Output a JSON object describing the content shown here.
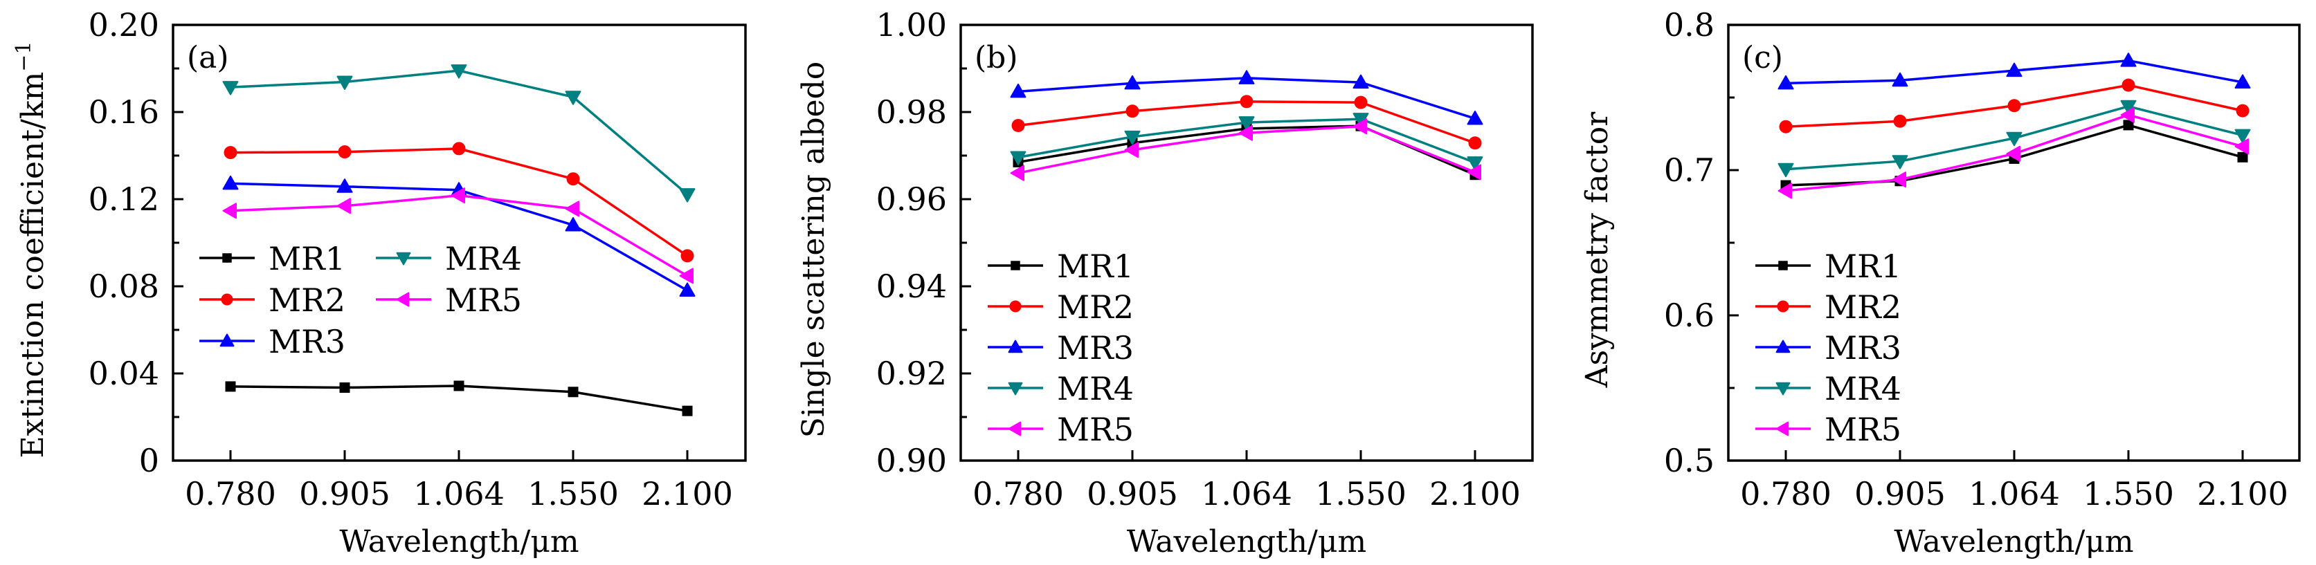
{
  "chart_data": [
    {
      "type": "line",
      "panel_label": "(a)",
      "title": "",
      "xlabel": "Wavelength/μm",
      "ylabel": "Extinction coefficient/km",
      "ylabel_superscript": "−1",
      "categories": [
        "0.780",
        "0.905",
        "1.064",
        "1.550",
        "2.100"
      ],
      "ylim": [
        0,
        0.2
      ],
      "yticks": [
        0,
        0.04,
        0.08,
        0.12,
        0.16,
        0.2
      ],
      "ytick_labels": [
        "0",
        "0.04",
        "0.08",
        "0.12",
        "0.16",
        "0.20"
      ],
      "grid": false,
      "legend_placement": "center-left",
      "legend_columns": 2,
      "series": [
        {
          "name": "MR1",
          "color": "#000000",
          "marker": "square",
          "values": [
            0.034,
            0.0335,
            0.0343,
            0.0315,
            0.0228
          ]
        },
        {
          "name": "MR2",
          "color": "#ff0000",
          "marker": "circle",
          "values": [
            0.1414,
            0.1417,
            0.1432,
            0.1293,
            0.094
          ]
        },
        {
          "name": "MR3",
          "color": "#0000ff",
          "marker": "triangle-up",
          "values": [
            0.1272,
            0.1258,
            0.1242,
            0.1081,
            0.0781
          ]
        },
        {
          "name": "MR4",
          "color": "#008080",
          "marker": "triangle-down",
          "values": [
            0.1714,
            0.1738,
            0.179,
            0.1669,
            0.1222
          ]
        },
        {
          "name": "MR5",
          "color": "#ff00ff",
          "marker": "triangle-left",
          "values": [
            0.1147,
            0.1169,
            0.1217,
            0.1156,
            0.0848
          ]
        }
      ]
    },
    {
      "type": "line",
      "panel_label": "(b)",
      "title": "",
      "xlabel": "Wavelength/μm",
      "ylabel": "Single scattering albedo",
      "ylabel_superscript": "",
      "categories": [
        "0.780",
        "0.905",
        "1.064",
        "1.550",
        "2.100"
      ],
      "ylim": [
        0.9,
        1.0
      ],
      "yticks": [
        0.9,
        0.92,
        0.94,
        0.96,
        0.98,
        1.0
      ],
      "ytick_labels": [
        "0.90",
        "0.92",
        "0.94",
        "0.96",
        "0.98",
        "1.00"
      ],
      "grid": false,
      "legend_placement": "lower-left",
      "legend_columns": 1,
      "series": [
        {
          "name": "MR1",
          "color": "#000000",
          "marker": "square",
          "values": [
            0.9685,
            0.9729,
            0.9762,
            0.9768,
            0.9656
          ]
        },
        {
          "name": "MR2",
          "color": "#ff0000",
          "marker": "circle",
          "values": [
            0.9769,
            0.9802,
            0.9824,
            0.9822,
            0.9729
          ]
        },
        {
          "name": "MR3",
          "color": "#0000ff",
          "marker": "triangle-up",
          "values": [
            0.9847,
            0.9866,
            0.9878,
            0.9868,
            0.9785
          ]
        },
        {
          "name": "MR4",
          "color": "#008080",
          "marker": "triangle-down",
          "values": [
            0.9696,
            0.9743,
            0.9776,
            0.9784,
            0.9684
          ]
        },
        {
          "name": "MR5",
          "color": "#ff00ff",
          "marker": "triangle-left",
          "values": [
            0.966,
            0.9713,
            0.9752,
            0.9767,
            0.9662
          ]
        }
      ]
    },
    {
      "type": "line",
      "panel_label": "(c)",
      "title": "",
      "xlabel": "Wavelength/μm",
      "ylabel": "Asymmetry factor",
      "ylabel_superscript": "",
      "categories": [
        "0.780",
        "0.905",
        "1.064",
        "1.550",
        "2.100"
      ],
      "ylim": [
        0.5,
        0.8
      ],
      "yticks": [
        0.5,
        0.6,
        0.7,
        0.8
      ],
      "ytick_labels": [
        "0.5",
        "0.6",
        "0.7",
        "0.8"
      ],
      "grid": false,
      "legend_placement": "lower-left",
      "legend_columns": 1,
      "series": [
        {
          "name": "MR1",
          "color": "#000000",
          "marker": "square",
          "values": [
            0.6895,
            0.6925,
            0.7079,
            0.731,
            0.7089
          ]
        },
        {
          "name": "MR2",
          "color": "#ff0000",
          "marker": "circle",
          "values": [
            0.7299,
            0.7337,
            0.7444,
            0.7585,
            0.7409
          ]
        },
        {
          "name": "MR3",
          "color": "#0000ff",
          "marker": "triangle-up",
          "values": [
            0.7598,
            0.7618,
            0.7685,
            0.7754,
            0.7605
          ]
        },
        {
          "name": "MR4",
          "color": "#008080",
          "marker": "triangle-down",
          "values": [
            0.7006,
            0.7061,
            0.722,
            0.7439,
            0.724
          ]
        },
        {
          "name": "MR5",
          "color": "#ff00ff",
          "marker": "triangle-left",
          "values": [
            0.6858,
            0.6935,
            0.7113,
            0.738,
            0.7163
          ]
        }
      ]
    }
  ]
}
